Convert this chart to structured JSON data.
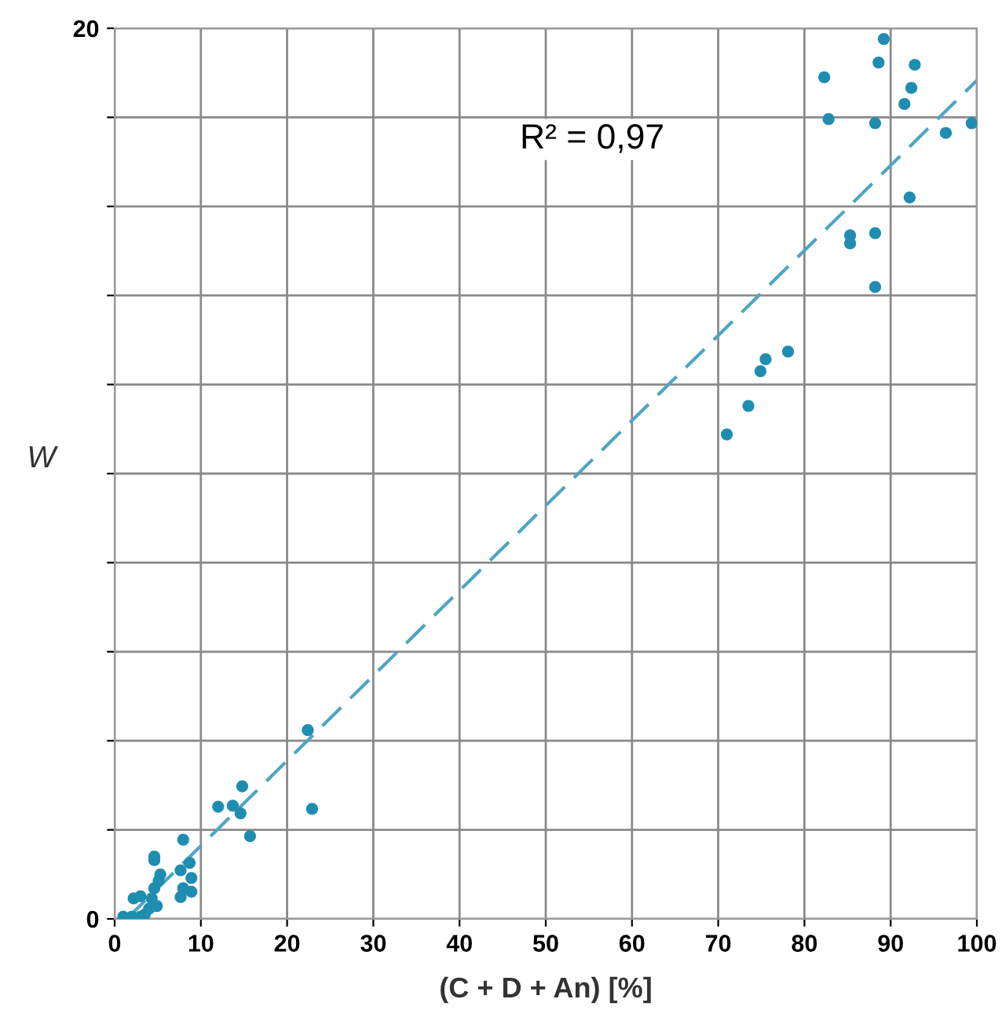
{
  "chart_data": {
    "type": "scatter",
    "xlabel": "(C + D + An) [%]",
    "ylabel": "W",
    "annotations": [
      "R² = 0,97"
    ],
    "xlim": [
      0,
      100
    ],
    "ylim": [
      0,
      20
    ],
    "xticks": [
      0,
      10,
      20,
      30,
      40,
      50,
      60,
      70,
      80,
      90,
      100
    ],
    "yticks": [
      0,
      {
        "value": 2,
        "label": null
      },
      {
        "value": 4,
        "label": null
      },
      {
        "value": 6,
        "label": null
      },
      {
        "value": 8,
        "label": null
      },
      {
        "value": 10,
        "label": null
      },
      {
        "value": 12,
        "label": null
      },
      {
        "value": 14,
        "label": null
      },
      {
        "value": 16,
        "label": null
      },
      {
        "value": 18,
        "label": null
      },
      20
    ],
    "grid": true,
    "series": [
      {
        "color": "#1f8db0",
        "marker": "circle",
        "x": [
          89.2,
          88.6,
          92.8,
          82.3,
          92.4,
          91.6,
          82.8,
          88.2,
          96.4,
          99.4,
          92.2,
          85.3,
          85.3,
          88.2,
          88.2,
          78.1,
          75.5,
          74.9,
          73.5,
          71.0,
          22.4,
          22.9,
          14.8,
          12.0,
          13.7,
          14.6,
          15.7,
          7.95,
          4.6,
          4.6,
          8.7,
          5.3,
          7.65,
          8.9,
          5.1,
          7.95,
          8.9,
          4.6,
          7.65,
          2.2,
          3.0,
          4.3,
          4.9,
          4.0,
          1.0,
          2.0,
          3.0,
          3.5
        ],
        "values": [
          19.76,
          19.23,
          19.18,
          18.9,
          18.66,
          18.3,
          17.96,
          17.87,
          17.65,
          17.87,
          16.2,
          15.35,
          15.17,
          15.4,
          14.19,
          12.74,
          12.57,
          12.3,
          11.52,
          10.88,
          4.24,
          2.47,
          2.98,
          2.52,
          2.54,
          2.37,
          1.86,
          1.78,
          1.4,
          1.32,
          1.26,
          1.0,
          1.09,
          0.92,
          0.86,
          0.69,
          0.61,
          0.69,
          0.49,
          0.46,
          0.51,
          0.46,
          0.29,
          0.23,
          0.05,
          0.05,
          0.05,
          0.1
        ]
      },
      {
        "type": "line",
        "color": "#4ea5c2",
        "line_style": "dashed",
        "marker": "none",
        "x": [
          1.4,
          100
        ],
        "values": [
          0,
          18.83
        ]
      }
    ]
  }
}
